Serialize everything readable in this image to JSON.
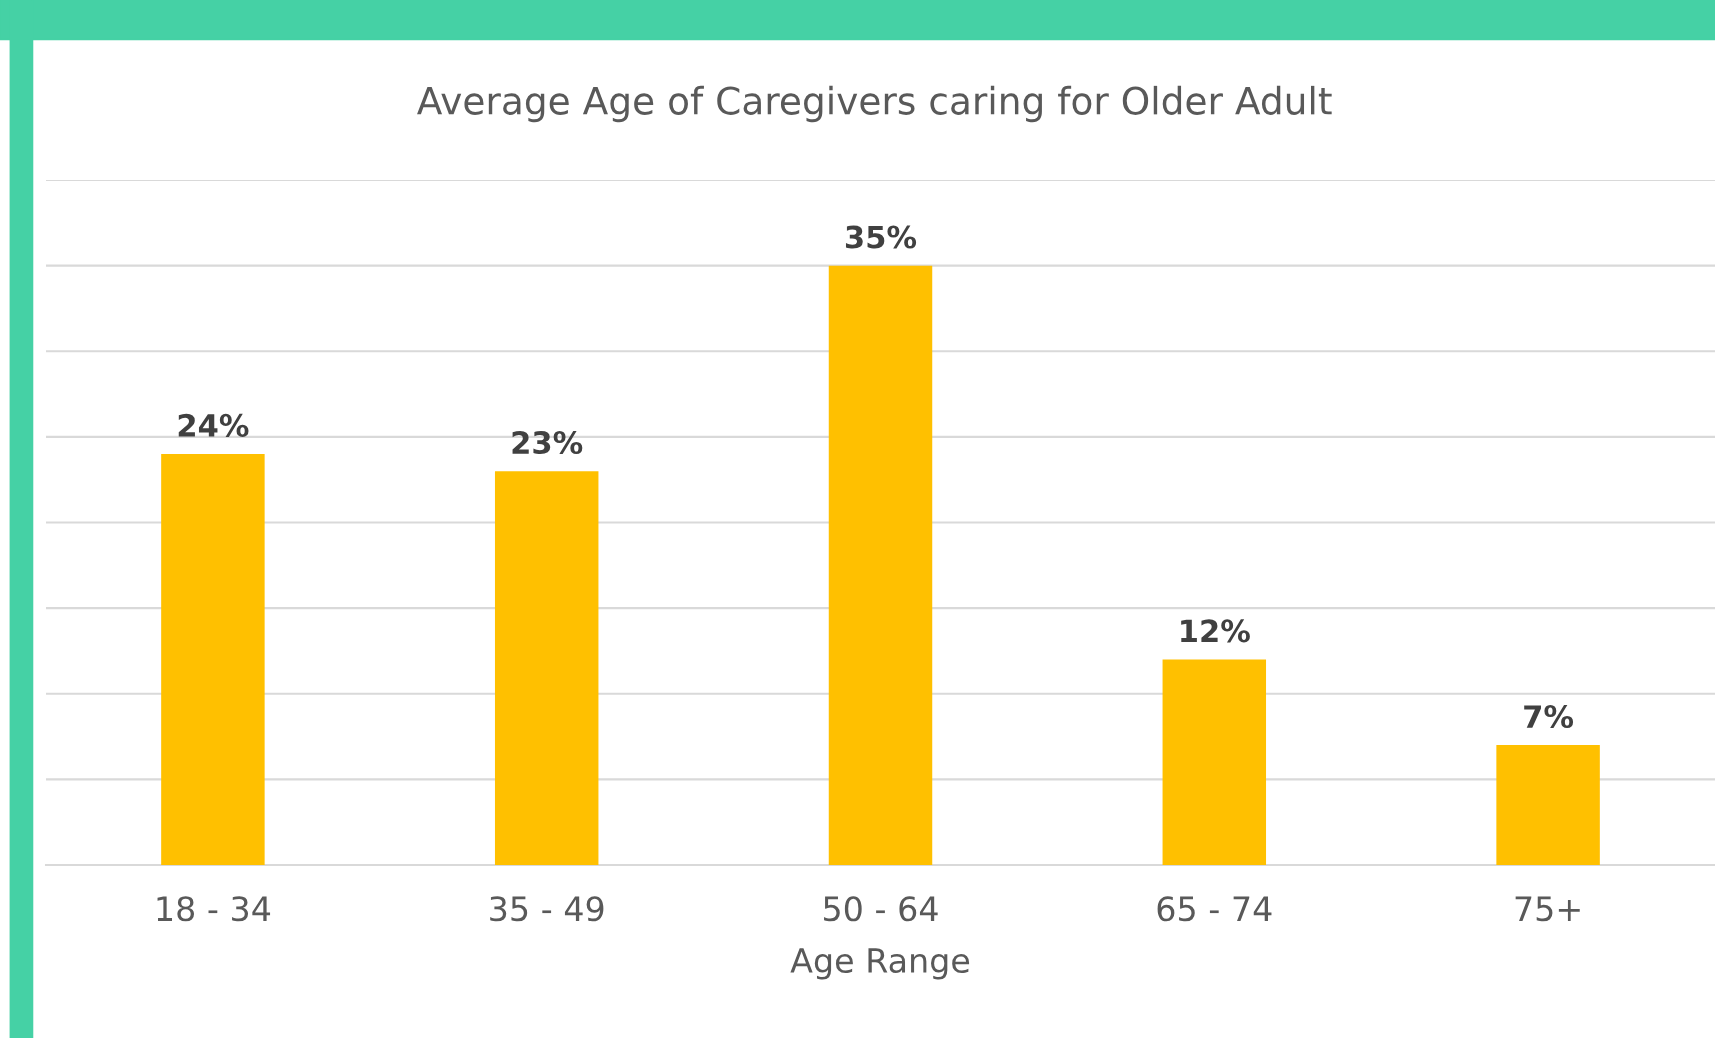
{
  "chart_data": {
    "type": "bar",
    "title": "Average Age of Caregivers caring for Older Adult",
    "xlabel": "Age Range",
    "categories": [
      "18 - 34",
      "35 - 49",
      "50 - 64",
      "65 - 74",
      "75+"
    ],
    "values": [
      24,
      23,
      35,
      12,
      7
    ],
    "color": "#ffc000",
    "value_labels": [
      "24%",
      "23%",
      "35%",
      "12%",
      "7%"
    ],
    "ylim": [
      0,
      40
    ],
    "yticks": [
      {
        "value": 0,
        "label": null
      },
      {
        "value": 5,
        "label": null
      },
      {
        "value": 10,
        "label": null
      },
      {
        "value": 15,
        "label": null
      },
      {
        "value": 20,
        "label": null
      },
      {
        "value": 25,
        "label": null
      },
      {
        "value": 30,
        "label": null
      },
      {
        "value": 35,
        "label": null
      },
      {
        "value": 40,
        "label": null
      }
    ],
    "tick_labels": "x",
    "grid": "y",
    "legend": false
  }
}
